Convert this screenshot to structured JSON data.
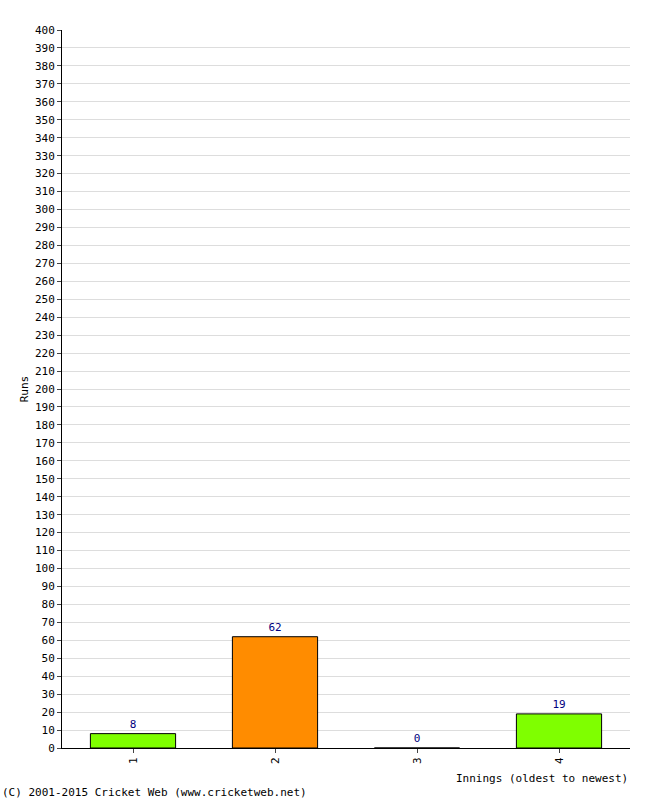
{
  "chart_data": {
    "type": "bar",
    "categories": [
      "1",
      "2",
      "3",
      "4"
    ],
    "values": [
      8,
      62,
      0,
      19
    ],
    "colors": [
      "#7fff00",
      "#ff8c00",
      "#7fff00",
      "#7fff00"
    ],
    "y_label": "Runs",
    "x_label": "Innings (oldest to newest)",
    "annotations": [
      "(C) 2001-2015 Cricket Web (www.cricketweb.net)"
    ],
    "ylim": [
      0,
      400
    ],
    "yticks": [
      0,
      10,
      20,
      30,
      40,
      50,
      60,
      70,
      80,
      90,
      100,
      110,
      120,
      130,
      140,
      150,
      160,
      170,
      180,
      190,
      200,
      210,
      220,
      230,
      240,
      250,
      260,
      270,
      280,
      290,
      300,
      310,
      320,
      330,
      340,
      350,
      360,
      370,
      380,
      390,
      400
    ],
    "grid": true,
    "data_labels": true
  }
}
